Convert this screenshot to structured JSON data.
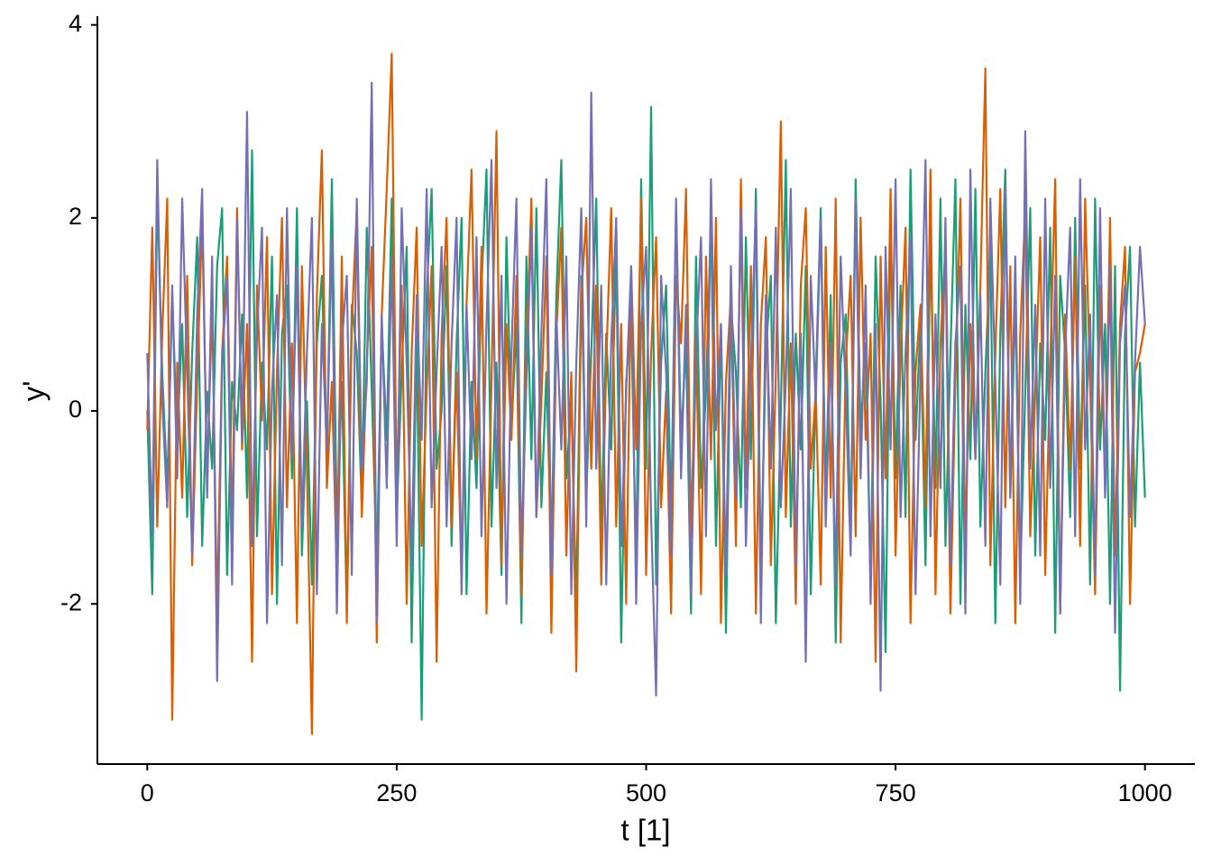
{
  "chart_data": {
    "type": "line",
    "x_label": "t [1]",
    "y_label": "y'",
    "xlim": [
      -50,
      1050
    ],
    "ylim": [
      -3.66,
      4.09
    ],
    "xticks": [
      0,
      250,
      500,
      750,
      1000
    ],
    "yticks": [
      -2,
      0,
      2,
      4
    ],
    "grid": false,
    "x": [
      0,
      5,
      10,
      15,
      20,
      25,
      30,
      35,
      40,
      45,
      50,
      55,
      60,
      65,
      70,
      75,
      80,
      85,
      90,
      95,
      100,
      105,
      110,
      115,
      120,
      125,
      130,
      135,
      140,
      145,
      150,
      155,
      160,
      165,
      170,
      175,
      180,
      185,
      190,
      195,
      200,
      205,
      210,
      215,
      220,
      225,
      230,
      235,
      240,
      245,
      250,
      255,
      260,
      265,
      270,
      275,
      280,
      285,
      290,
      295,
      300,
      305,
      310,
      315,
      320,
      325,
      330,
      335,
      340,
      345,
      350,
      355,
      360,
      365,
      370,
      375,
      380,
      385,
      390,
      395,
      400,
      405,
      410,
      415,
      420,
      425,
      430,
      435,
      440,
      445,
      450,
      455,
      460,
      465,
      470,
      475,
      480,
      485,
      490,
      495,
      500,
      505,
      510,
      515,
      520,
      525,
      530,
      535,
      540,
      545,
      550,
      555,
      560,
      565,
      570,
      575,
      580,
      585,
      590,
      595,
      600,
      605,
      610,
      615,
      620,
      625,
      630,
      635,
      640,
      645,
      650,
      655,
      660,
      665,
      670,
      675,
      680,
      685,
      690,
      695,
      700,
      705,
      710,
      715,
      720,
      725,
      730,
      735,
      740,
      745,
      750,
      755,
      760,
      765,
      770,
      775,
      780,
      785,
      790,
      795,
      800,
      805,
      810,
      815,
      820,
      825,
      830,
      835,
      840,
      845,
      850,
      855,
      860,
      865,
      870,
      875,
      880,
      885,
      890,
      895,
      900,
      905,
      910,
      915,
      920,
      925,
      930,
      935,
      940,
      945,
      950,
      955,
      960,
      965,
      970,
      975,
      980,
      985,
      990,
      995,
      1000
    ],
    "series": [
      {
        "color": "#1b9e77",
        "values": [
          0.0,
          -1.9,
          2.3,
          0.4,
          -0.8,
          1.2,
          -0.3,
          0.9,
          -1.1,
          0.6,
          1.8,
          -1.4,
          0.2,
          -0.6,
          1.5,
          2.1,
          -1.7,
          0.3,
          -0.2,
          1.0,
          -0.9,
          2.7,
          -1.3,
          0.5,
          -0.4,
          1.6,
          -2.0,
          0.8,
          1.3,
          -0.7,
          2.1,
          -1.5,
          0.1,
          -1.8,
          0.7,
          1.4,
          -0.5,
          2.4,
          -1.2,
          0.3,
          -2.1,
          1.1,
          0.6,
          -1.0,
          1.9,
          0.2,
          -1.6,
          0.9,
          -0.3,
          2.2,
          -1.1,
          0.4,
          1.7,
          -2.4,
          0.8,
          -3.2,
          1.2,
          2.3,
          -0.6,
          0.0,
          1.5,
          -1.4,
          0.7,
          2.0,
          -1.9,
          0.3,
          -0.8,
          1.3,
          2.5,
          -1.2,
          0.5,
          -1.7,
          1.8,
          -0.2,
          0.9,
          -2.2,
          1.6,
          -0.5,
          2.1,
          -1.0,
          0.4,
          -1.5,
          1.2,
          2.6,
          -0.7,
          0.1,
          -2.0,
          1.4,
          -0.9,
          0.6,
          2.2,
          -1.3,
          0.8,
          -0.4,
          1.7,
          -2.4,
          0.3,
          1.0,
          -1.6,
          2.4,
          -0.6,
          3.15,
          -1.8,
          0.5,
          1.3,
          -1.1,
          2.1,
          -0.3,
          0.7,
          -2.1,
          1.6,
          -0.8,
          0.2,
          2.0,
          -1.4,
          0.9,
          -2.3,
          1.1,
          0.4,
          -1.0,
          1.8,
          -0.5,
          2.3,
          -1.7,
          0.6,
          1.4,
          -2.2,
          0.0,
          2.6,
          -1.2,
          0.8,
          -0.4,
          1.5,
          -1.9,
          0.3,
          2.1,
          -0.9,
          1.2,
          -2.4,
          0.5,
          1.0,
          -1.3,
          2.4,
          -0.2,
          0.7,
          -1.8,
          1.6,
          0.1,
          -2.5,
          2.0,
          -0.7,
          1.3,
          -1.1,
          2.5,
          -0.3,
          0.9,
          -1.6,
          1.8,
          -0.8,
          2.2,
          -1.4,
          0.6,
          2.4,
          -2.0,
          1.1,
          -0.5,
          2.3,
          -1.2,
          0.4,
          1.7,
          -2.2,
          0.8,
          2.5,
          -0.9,
          1.2,
          -1.7,
          0.2,
          2.1,
          -1.5,
          0.7,
          -0.3,
          1.9,
          -2.3,
          1.4,
          0.6,
          -1.1,
          2.0,
          -0.6,
          1.3,
          -1.8,
          2.2,
          -0.4,
          0.9,
          -2.0,
          1.5,
          -2.9,
          0.8,
          1.7,
          -1.2,
          0.5,
          -0.9
        ]
      },
      {
        "color": "#d95f02",
        "values": [
          -0.2,
          1.9,
          -1.2,
          0.8,
          2.2,
          -3.2,
          0.5,
          -0.9,
          1.4,
          -1.6,
          0.3,
          2.0,
          -0.7,
          1.1,
          -2.1,
          0.6,
          1.6,
          -1.3,
          2.1,
          -0.4,
          0.9,
          -2.6,
          1.3,
          -0.1,
          1.8,
          -1.9,
          0.4,
          2.0,
          -1.0,
          0.7,
          -2.2,
          1.5,
          -0.6,
          -3.35,
          1.2,
          2.7,
          -0.8,
          0.3,
          -1.7,
          1.6,
          -2.2,
          0.9,
          2.1,
          -1.1,
          0.5,
          1.7,
          -2.4,
          1.0,
          2.3,
          3.7,
          -0.9,
          1.3,
          -2.0,
          0.6,
          1.9,
          -1.4,
          0.2,
          1.5,
          -2.6,
          0.8,
          2.0,
          -1.2,
          0.4,
          -1.8,
          1.1,
          2.5,
          -0.5,
          1.7,
          -2.1,
          0.3,
          2.9,
          -1.6,
          0.9,
          -0.3,
          1.4,
          -1.9,
          0.6,
          2.2,
          -1.1,
          0.1,
          1.6,
          -2.3,
          0.8,
          1.9,
          -1.5,
          0.4,
          -2.7,
          1.2,
          2.0,
          -0.6,
          1.3,
          -1.8,
          0.5,
          2.1,
          -1.2,
          0.9,
          -2.0,
          1.5,
          -0.4,
          2.2,
          -1.7,
          0.6,
          1.8,
          -1.0,
          0.2,
          -2.1,
          1.4,
          0.7,
          2.3,
          -1.3,
          0.8,
          -1.9,
          1.6,
          -0.5,
          2.0,
          -2.2,
          0.3,
          1.2,
          -1.4,
          2.4,
          -0.8,
          1.5,
          -2.1,
          0.9,
          1.8,
          -1.6,
          0.4,
          3.0,
          -1.1,
          0.7,
          -2.0,
          1.3,
          2.1,
          -0.6,
          0.2,
          -1.8,
          1.7,
          -0.9,
          2.2,
          -2.4,
          0.5,
          1.4,
          -1.3,
          2.0,
          -0.3,
          0.8,
          -2.6,
          1.6,
          -0.7,
          2.3,
          -1.5,
          0.6,
          1.9,
          -2.2,
          0.4,
          1.1,
          -1.0,
          2.5,
          -1.9,
          0.7,
          1.7,
          -2.1,
          0.3,
          2.2,
          -1.4,
          0.9,
          -0.5,
          1.3,
          3.55,
          -1.6,
          0.6,
          2.3,
          -1.0,
          1.5,
          -2.2,
          0.8,
          2.1,
          -1.3,
          0.2,
          1.8,
          -1.7,
          0.5,
          2.4,
          -2.1,
          1.0,
          -0.6,
          1.6,
          -1.4,
          2.2,
          0.3,
          -1.9,
          1.3,
          -0.8,
          2.0,
          -1.5,
          0.9,
          1.7,
          -2.0,
          0.4,
          0.6,
          0.9
        ]
      },
      {
        "color": "#7570b3",
        "values": [
          0.6,
          -1.3,
          2.6,
          0.1,
          -1.0,
          1.3,
          -0.7,
          2.2,
          0.4,
          -1.5,
          1.0,
          2.3,
          -0.9,
          1.6,
          -2.8,
          0.5,
          1.4,
          -1.8,
          2.0,
          -0.3,
          3.1,
          -1.4,
          0.8,
          1.9,
          -2.2,
          0.2,
          1.2,
          -1.6,
          2.1,
          -0.5,
          1.5,
          -1.2,
          0.6,
          2.0,
          -1.9,
          0.9,
          -0.4,
          1.8,
          -2.1,
          0.7,
          1.4,
          -1.7,
          2.2,
          -0.6,
          0.3,
          3.4,
          -2.2,
          1.0,
          -0.8,
          1.6,
          -1.4,
          2.1,
          0.5,
          -1.6,
          1.2,
          -0.3,
          2.3,
          -1.0,
          0.4,
          1.7,
          -1.2,
          0.7,
          2.0,
          -1.9,
          1.1,
          -0.5,
          1.8,
          -1.3,
          0.9,
          2.6,
          -0.8,
          1.4,
          -2.0,
          0.6,
          2.2,
          -1.5,
          0.3,
          1.9,
          -1.1,
          0.8,
          2.4,
          -1.7,
          1.0,
          -0.4,
          1.6,
          -1.9,
          0.5,
          2.1,
          -1.2,
          3.3,
          -0.6,
          1.3,
          -1.8,
          0.7,
          2.0,
          -1.4,
          0.2,
          1.5,
          -2.0,
          0.9,
          1.7,
          -1.1,
          -2.95,
          1.4,
          0.4,
          -1.5,
          2.2,
          -0.7,
          1.1,
          -1.9,
          0.6,
          1.8,
          -1.3,
          2.4,
          -0.2,
          0.9,
          -1.7,
          1.5,
          -0.9,
          2.1,
          -1.4,
          0.5,
          2.1,
          -2.2,
          1.2,
          -0.6,
          1.9,
          -1.0,
          0.3,
          2.3,
          -1.6,
          0.8,
          -2.6,
          1.4,
          0.1,
          2.0,
          -1.2,
          0.7,
          -1.8,
          1.6,
          0.2,
          -1.5,
          2.2,
          -0.7,
          1.3,
          -2.0,
          0.9,
          -2.9,
          1.7,
          -0.4,
          2.4,
          -1.1,
          0.6,
          1.8,
          -1.9,
          0.4,
          2.6,
          -1.3,
          1.0,
          -0.8,
          2.0,
          -1.6,
          0.7,
          1.5,
          -2.1,
          2.5,
          -0.5,
          1.2,
          -1.4,
          2.2,
          0.3,
          -1.8,
          2.3,
          -0.9,
          1.6,
          -2.0,
          2.9,
          -0.6,
          1.1,
          -1.5,
          2.2,
          -0.8,
          1.4,
          -2.1,
          0.6,
          1.9,
          -1.3,
          2.4,
          -0.4,
          1.0,
          -1.7,
          2.1,
          -0.9,
          1.5,
          -2.3,
          0.7,
          1.3,
          -1.1,
          0.5,
          1.7,
          0.9
        ]
      }
    ]
  }
}
